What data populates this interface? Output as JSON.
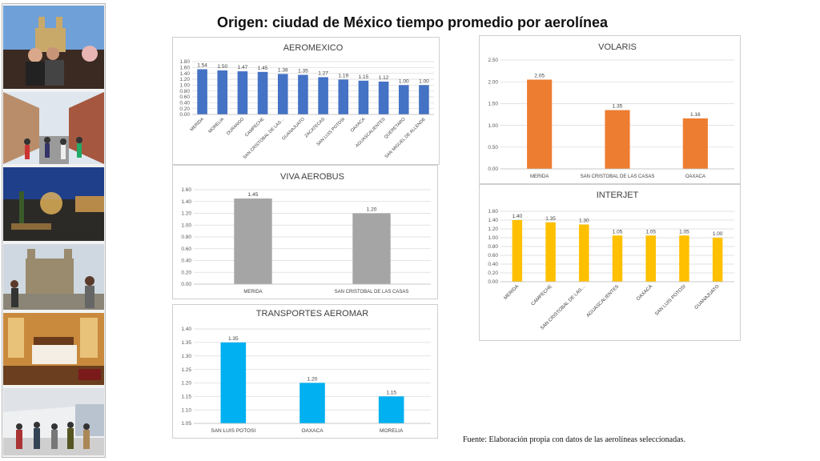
{
  "title": "Origen: ciudad de México tiempo promedio por aerolínea",
  "source": "Fuente: Elaboración propia con datos de las aerolíneas seleccionadas.",
  "photos": [
    {
      "name": "photo-people-rooftop-cathedral"
    },
    {
      "name": "photo-colonial-street-crowd"
    },
    {
      "name": "photo-terrace-night-city"
    },
    {
      "name": "photo-church-plaza-tourists"
    },
    {
      "name": "photo-hotel-room"
    },
    {
      "name": "photo-mall-shoppers"
    }
  ],
  "chart_data": [
    {
      "type": "bar",
      "title": "AEROMEXICO",
      "categories": [
        "MERIDA",
        "MORELIA",
        "DURANGO",
        "CAMPECHE",
        "SAN CRISTOBAL DE LAS…",
        "GUANAJUATO",
        "ZACATECAS",
        "SAN LUIS POTOSI",
        "OAXACA",
        "AGUASCALIENTES",
        "QUERETARO",
        "SAN MIGUEL DE ALLENDE"
      ],
      "values": [
        1.54,
        1.5,
        1.47,
        1.45,
        1.38,
        1.35,
        1.27,
        1.19,
        1.15,
        1.12,
        1.0,
        1.0
      ],
      "value_labels": [
        "1.54",
        "1.50",
        "1.47",
        "1.45",
        "1.38",
        "1.35",
        "1.27",
        "1.19",
        "1.15",
        "1.12",
        "1.00",
        "1.00"
      ],
      "ylim": [
        0,
        1.8
      ],
      "yticks": [
        "0.00",
        "0.20",
        "0.40",
        "0.60",
        "0.80",
        "1.00",
        "1.20",
        "1.40",
        "1.60",
        "1.80"
      ],
      "color": "#4472c4",
      "grid": true,
      "rotate_labels": true
    },
    {
      "type": "bar",
      "title": "VOLARIS",
      "categories": [
        "MERIDA",
        "SAN CRISTOBAL DE LAS CASAS",
        "OAXACA"
      ],
      "values": [
        2.05,
        1.35,
        1.16
      ],
      "value_labels": [
        "2.05",
        "1.35",
        "1.16"
      ],
      "ylim": [
        0,
        2.5
      ],
      "yticks": [
        "0.00",
        "0.50",
        "1.00",
        "1.50",
        "2.00",
        "2.50"
      ],
      "color": "#ed7d31",
      "grid": true,
      "rotate_labels": false
    },
    {
      "type": "bar",
      "title": "VIVA AEROBUS",
      "categories": [
        "MERIDA",
        "SAN CRISTOBAL DE LAS CASAS"
      ],
      "values": [
        1.45,
        1.2
      ],
      "value_labels": [
        "1.45",
        "1.20"
      ],
      "ylim": [
        0,
        1.6
      ],
      "yticks": [
        "0.00",
        "0.20",
        "0.40",
        "0.60",
        "0.80",
        "1.00",
        "1.20",
        "1.40",
        "1.60"
      ],
      "color": "#a5a5a5",
      "grid": true,
      "rotate_labels": false
    },
    {
      "type": "bar",
      "title": "INTERJET",
      "categories": [
        "MERIDA",
        "CAMPECHE",
        "SAN CRISTOBAL DE LAS…",
        "AGUASCALIENTES",
        "OAXACA",
        "SAN LUIS POTOSI",
        "GUANAJUATO"
      ],
      "values": [
        1.4,
        1.35,
        1.3,
        1.05,
        1.05,
        1.05,
        1.0
      ],
      "value_labels": [
        "1.40",
        "1.35",
        "1.30",
        "1.05",
        "1.05",
        "1.05",
        "1.00"
      ],
      "ylim": [
        0,
        1.6
      ],
      "yticks": [
        "0.00",
        "0.20",
        "0.40",
        "0.60",
        "0.80",
        "1.00",
        "1.20",
        "1.40",
        "1.60"
      ],
      "color": "#ffc000",
      "grid": true,
      "rotate_labels": true
    },
    {
      "type": "bar",
      "title": "TRANSPORTES AEROMAR",
      "categories": [
        "SAN LUIS POTOSI",
        "OAXACA",
        "MORELIA"
      ],
      "values": [
        1.35,
        1.2,
        1.15
      ],
      "value_labels": [
        "1.35",
        "1.20",
        "1.15"
      ],
      "ylim": [
        1.05,
        1.4
      ],
      "yticks": [
        "1.05",
        "1.10",
        "1.15",
        "1.20",
        "1.25",
        "1.30",
        "1.35",
        "1.40"
      ],
      "color": "#00b0f0",
      "grid": true,
      "rotate_labels": false
    }
  ]
}
